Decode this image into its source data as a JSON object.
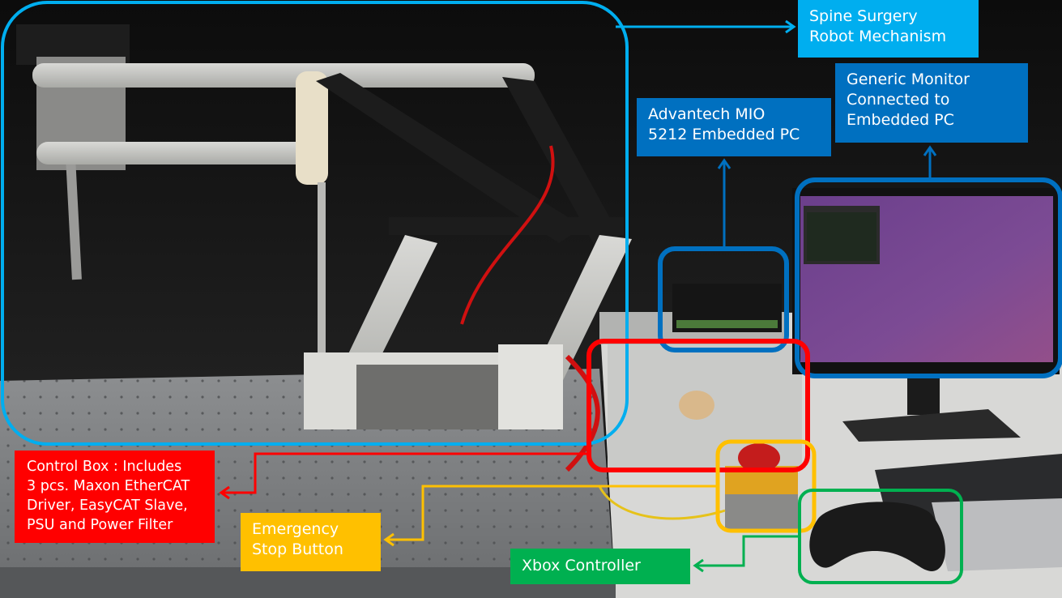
{
  "labels": {
    "spine": "Spine Surgery\nRobot Mechanism",
    "monitor": "Generic Monitor\nConnected to\nEmbedded PC",
    "advantech": "Advantech MIO\n5212 Embedded PC",
    "control_box": "Control Box : Includes\n3 pcs. Maxon EtherCAT\nDriver, EasyCAT Slave,\nPSU and  Power Filter",
    "estop": "Emergency\nStop Button",
    "xbox": "Xbox Controller"
  },
  "colors": {
    "spine": "#00aeef",
    "monitor": "#0070c0",
    "advantech": "#0070c0",
    "control_box": "#ff0000",
    "estop": "#ffc000",
    "xbox": "#00b050"
  }
}
